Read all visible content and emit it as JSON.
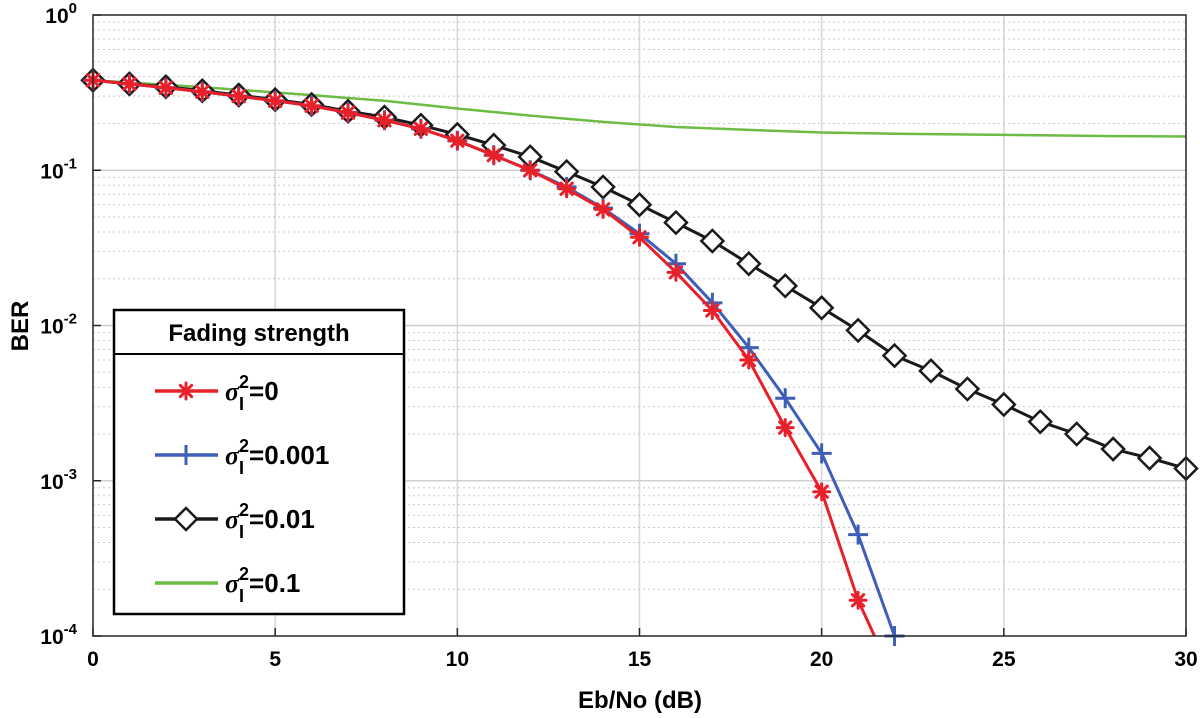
{
  "chart_data": {
    "type": "line",
    "xlabel": "Eb/No (dB)",
    "ylabel": "BER",
    "xlim": [
      0,
      30
    ],
    "ylim": [
      0.0001,
      1
    ],
    "yscale": "log",
    "grid": true,
    "x_ticks": [
      0,
      5,
      10,
      15,
      20,
      25,
      30
    ],
    "y_ticks": [
      {
        "value": 1,
        "base": "10",
        "exp": "0"
      },
      {
        "value": 0.1,
        "base": "10",
        "exp": "-1"
      },
      {
        "value": 0.01,
        "base": "10",
        "exp": "-2"
      },
      {
        "value": 0.001,
        "base": "10",
        "exp": "-3"
      },
      {
        "value": 0.0001,
        "base": "10",
        "exp": "-4"
      }
    ],
    "legend": {
      "title": "Fading strength",
      "placement": "lower-left",
      "symbol": "σ",
      "subscript": "I",
      "superscript": "2"
    },
    "series": [
      {
        "name": "σI²=0",
        "value_label": "=0",
        "color": "#e8202a",
        "marker": "asterisk",
        "x": [
          0,
          1,
          2,
          3,
          4,
          5,
          6,
          7,
          8,
          9,
          10,
          11,
          12,
          13,
          14,
          15,
          16,
          17,
          18,
          19,
          20,
          21,
          21.45
        ],
        "y": [
          0.38,
          0.36,
          0.34,
          0.32,
          0.3,
          0.28,
          0.26,
          0.235,
          0.21,
          0.185,
          0.155,
          0.125,
          0.1,
          0.076,
          0.056,
          0.037,
          0.022,
          0.0125,
          0.006,
          0.0022,
          0.00085,
          0.00017,
          0.0001
        ],
        "marker_count": 22
      },
      {
        "name": "σI²=0.001",
        "value_label": "=0.001",
        "color": "#3d5fb6",
        "marker": "plus",
        "x": [
          0,
          1,
          2,
          3,
          4,
          5,
          6,
          7,
          8,
          9,
          10,
          11,
          12,
          13,
          14,
          15,
          16,
          17,
          18,
          19,
          20,
          21,
          22
        ],
        "y": [
          0.38,
          0.36,
          0.34,
          0.32,
          0.3,
          0.28,
          0.26,
          0.235,
          0.21,
          0.185,
          0.155,
          0.125,
          0.1,
          0.078,
          0.057,
          0.039,
          0.025,
          0.014,
          0.0072,
          0.0034,
          0.0015,
          0.00045,
          0.0001
        ],
        "marker_count": 23
      },
      {
        "name": "σI²=0.01",
        "value_label": "=0.01",
        "color": "#1a1a1a",
        "marker": "diamond",
        "x": [
          0,
          1,
          2,
          3,
          4,
          5,
          6,
          7,
          8,
          9,
          10,
          11,
          12,
          13,
          14,
          15,
          16,
          17,
          18,
          19,
          20,
          21,
          22,
          23,
          24,
          25,
          26,
          27,
          28,
          29,
          30
        ],
        "y": [
          0.38,
          0.36,
          0.345,
          0.325,
          0.305,
          0.285,
          0.265,
          0.24,
          0.22,
          0.195,
          0.17,
          0.145,
          0.122,
          0.098,
          0.078,
          0.06,
          0.046,
          0.035,
          0.025,
          0.018,
          0.013,
          0.0093,
          0.0064,
          0.0051,
          0.0039,
          0.0031,
          0.0024,
          0.002,
          0.0016,
          0.0014,
          0.0012
        ],
        "marker_count": 31
      },
      {
        "name": "σI²=0.1",
        "value_label": "=0.1",
        "color": "#6cbc45",
        "marker": "none",
        "x": [
          0,
          2,
          4,
          6,
          8,
          10,
          12,
          14,
          16,
          18,
          20,
          22,
          24,
          26,
          28,
          30
        ],
        "y": [
          0.38,
          0.355,
          0.33,
          0.305,
          0.28,
          0.25,
          0.225,
          0.205,
          0.19,
          0.182,
          0.175,
          0.172,
          0.17,
          0.168,
          0.166,
          0.165
        ],
        "marker_count": 0
      }
    ]
  }
}
